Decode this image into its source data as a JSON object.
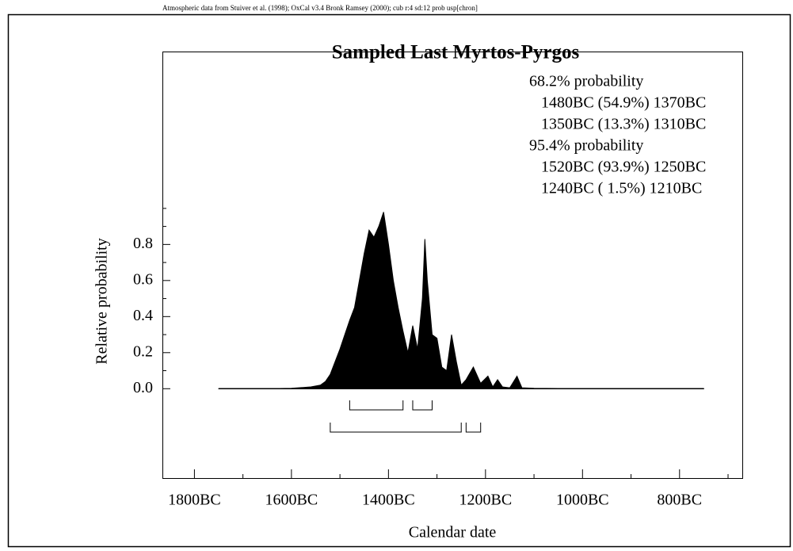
{
  "chart_data": {
    "type": "area",
    "header": "Atmospheric data from Stuiver et al. (1998); OxCal v3.4 Bronk Ramsey (2000); cub r:4 sd:12 prob usp[chron]",
    "title": "Sampled Last Myrtos-Pyrgos",
    "annotations": [
      "68.2% probability",
      "1480BC (54.9%) 1370BC",
      "1350BC (13.3%) 1310BC",
      "95.4% probability",
      "1520BC (93.9%) 1250BC",
      "1240BC ( 1.5%) 1210BC"
    ],
    "xlabel": "Calendar date",
    "ylabel": "Relative probability",
    "color": "#000000",
    "x": [
      -1750,
      -1650,
      -1600,
      -1560,
      -1540,
      -1530,
      -1520,
      -1510,
      -1500,
      -1490,
      -1480,
      -1470,
      -1460,
      -1450,
      -1440,
      -1430,
      -1420,
      -1410,
      -1400,
      -1390,
      -1380,
      -1370,
      -1360,
      -1350,
      -1340,
      -1330,
      -1325,
      -1320,
      -1310,
      -1300,
      -1290,
      -1280,
      -1270,
      -1260,
      -1250,
      -1240,
      -1225,
      -1210,
      -1195,
      -1185,
      -1175,
      -1165,
      -1150,
      -1135,
      -1125,
      -1100,
      -1000,
      -750
    ],
    "values": [
      0,
      0,
      0.002,
      0.01,
      0.02,
      0.04,
      0.08,
      0.15,
      0.22,
      0.3,
      0.38,
      0.45,
      0.6,
      0.75,
      0.88,
      0.84,
      0.9,
      0.98,
      0.8,
      0.6,
      0.45,
      0.32,
      0.2,
      0.35,
      0.22,
      0.5,
      0.83,
      0.6,
      0.3,
      0.28,
      0.12,
      0.1,
      0.3,
      0.15,
      0.02,
      0.05,
      0.12,
      0.03,
      0.07,
      0.01,
      0.05,
      0.01,
      0.005,
      0.07,
      0.005,
      0.002,
      0,
      0
    ],
    "ranges": [
      [
        {
          "from": -1480,
          "to": -1370
        },
        {
          "from": -1350,
          "to": -1310
        }
      ],
      [
        {
          "from": -1520,
          "to": -1250
        },
        {
          "from": -1240,
          "to": -1210
        }
      ]
    ],
    "xlim": [
      -1866,
      -669
    ],
    "ylim": [
      -0.5,
      1.87
    ],
    "xticks": [
      {
        "value": -1800,
        "label": "1800BC"
      },
      {
        "value": -1600,
        "label": "1600BC"
      },
      {
        "value": -1400,
        "label": "1400BC"
      },
      {
        "value": -1200,
        "label": "1200BC"
      },
      {
        "value": -1000,
        "label": "1000BC"
      },
      {
        "value": -800,
        "label": "800BC"
      }
    ],
    "xticks_minor": [
      -1700,
      -1500,
      -1300,
      -1100,
      -900,
      -700
    ],
    "yticks": [
      {
        "value": 0,
        "label": "0.0"
      },
      {
        "value": 0.2,
        "label": "0.2"
      },
      {
        "value": 0.4,
        "label": "0.4"
      },
      {
        "value": 0.6,
        "label": "0.6"
      },
      {
        "value": 0.8,
        "label": "0.8"
      }
    ],
    "yticks_minor": [
      0.1,
      0.3,
      0.5,
      0.7,
      0.9,
      1.0
    ]
  }
}
